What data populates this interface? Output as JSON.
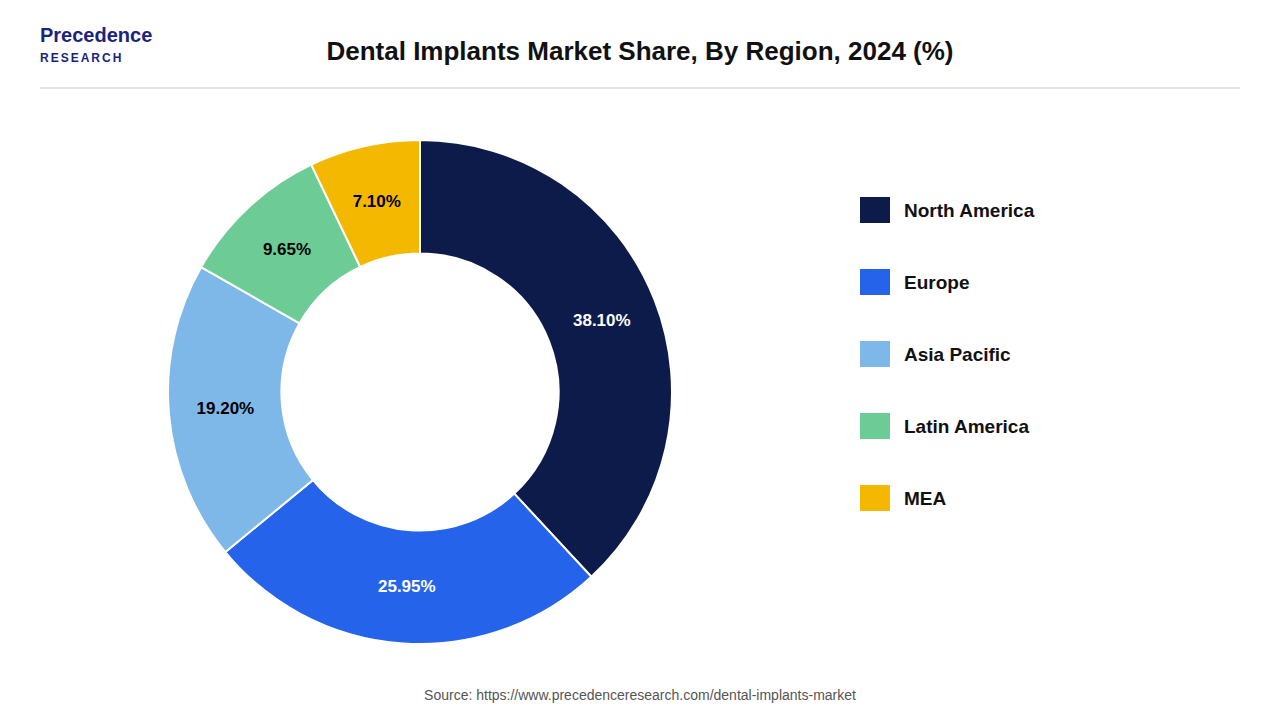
{
  "chart_data": {
    "type": "donut",
    "title": "Dental Implants Market Share, By Region, 2024 (%)",
    "categories": [
      "North America",
      "Europe",
      "Asia Pacific",
      "Latin America",
      "MEA"
    ],
    "values": [
      38.1,
      25.95,
      19.2,
      9.65,
      7.1
    ],
    "value_labels": [
      "38.10%",
      "25.95%",
      "19.20%",
      "9.65%",
      "7.10%"
    ],
    "colors": [
      "#0d1b4b",
      "#2563eb",
      "#7eb8e8",
      "#6dcc96",
      "#f5b800"
    ],
    "data_labels": true,
    "legend": "right",
    "annotations": [
      "Precedence",
      "RESEARCH",
      "Source: https://www.precedenceresearch.com/dental-implants-market"
    ]
  }
}
